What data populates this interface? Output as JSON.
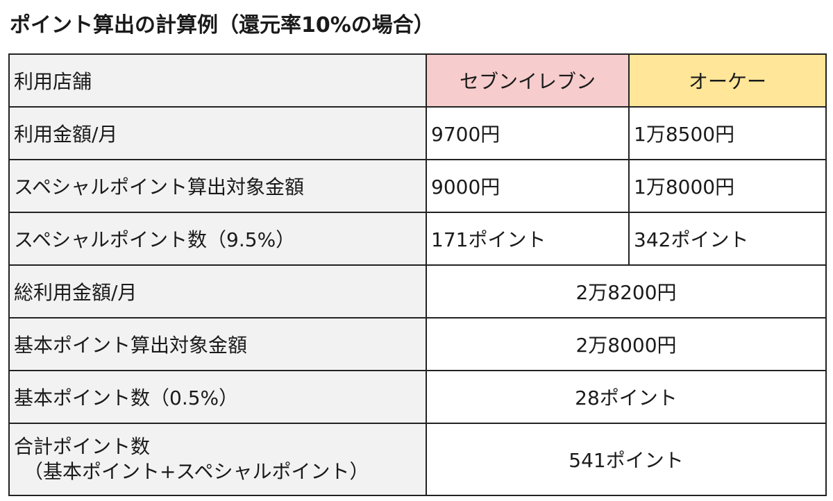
{
  "title": "ポイント算出の計算例（還元率10%の場合）",
  "colors": {
    "seven_header_bg": "#f6cccc",
    "okay_header_bg": "#ffe699",
    "label_col_bg": "#f2f2f2",
    "border": "#222222"
  },
  "table": {
    "header": {
      "label": "利用店舗",
      "col1": "セブンイレブン",
      "col2": "オーケー"
    },
    "rows": [
      {
        "label": "利用金額/月",
        "col1": "9700円",
        "col2": "1万8500円"
      },
      {
        "label": "スペシャルポイント算出対象金額",
        "col1": "9000円",
        "col2": "1万8000円"
      },
      {
        "label": "スペシャルポイント数（9.5%）",
        "col1": "171ポイント",
        "col2": "342ポイント"
      },
      {
        "label": "総利用金額/月",
        "merged": "2万8200円"
      },
      {
        "label": "基本ポイント算出対象金額",
        "merged": "2万8000円"
      },
      {
        "label": "基本ポイント数（0.5%）",
        "merged": "28ポイント"
      },
      {
        "label_line1": "合計ポイント数",
        "label_line2": "（基本ポイント+スペシャルポイント）",
        "merged": "541ポイント"
      }
    ]
  }
}
